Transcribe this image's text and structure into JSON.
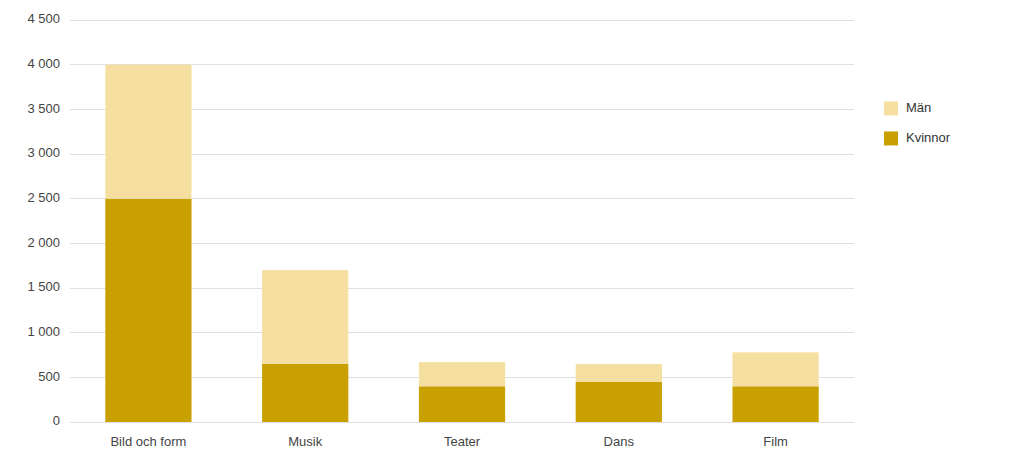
{
  "chart_data": {
    "type": "bar",
    "stacked": true,
    "categories": [
      "Bild och form",
      "Musik",
      "Teater",
      "Dans",
      "Film"
    ],
    "series": [
      {
        "name": "Kvinnor",
        "color": "#C8A000",
        "values": [
          2500,
          650,
          400,
          450,
          400
        ]
      },
      {
        "name": "Män",
        "color": "#F5DFA0",
        "values": [
          1500,
          1050,
          270,
          200,
          380
        ]
      }
    ],
    "ylim": [
      0,
      4500
    ],
    "yticks": [
      0,
      500,
      {
        "value": 1000,
        "label": "1 000"
      },
      {
        "value": 1500,
        "label": "1 500"
      },
      {
        "value": 2000,
        "label": "2 000"
      },
      {
        "value": 2500,
        "label": "2 500"
      },
      {
        "value": 3000,
        "label": "3 000"
      },
      {
        "value": 3500,
        "label": "3 500"
      },
      {
        "value": 4000,
        "label": "4 000"
      },
      {
        "value": 4500,
        "label": "4 500"
      }
    ],
    "grid": true,
    "legend": "right"
  }
}
